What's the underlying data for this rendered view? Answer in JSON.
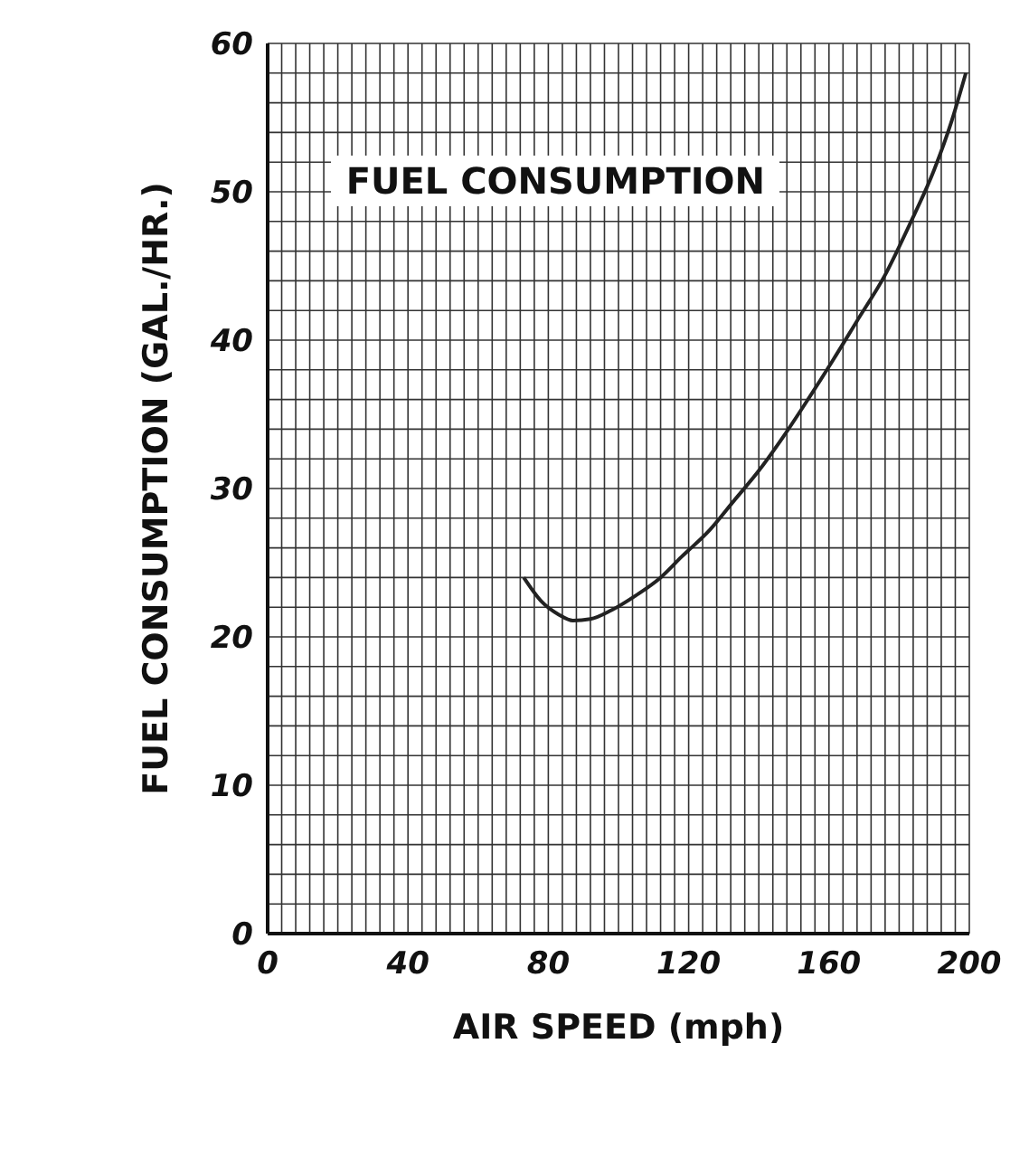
{
  "chart_data": {
    "type": "line",
    "title": "FUEL CONSUMPTION",
    "xlabel": "AIR SPEED (mph)",
    "ylabel": "FUEL CONSUMPTION  (GAL./HR.)",
    "series": [
      {
        "color": "#222222",
        "x": [
          73,
          78,
          83,
          87,
          92,
          98,
          105,
          112,
          118,
          126,
          133,
          140,
          147,
          154,
          161,
          168,
          176,
          183,
          190,
          195,
          199
        ],
        "values": [
          24.0,
          22.4,
          21.5,
          21.1,
          21.2,
          21.8,
          22.8,
          24.0,
          25.4,
          27.2,
          29.2,
          31.2,
          33.5,
          36.0,
          38.6,
          41.3,
          44.4,
          47.8,
          51.5,
          54.8,
          58.0
        ]
      }
    ],
    "xlim": [
      0,
      200
    ],
    "ylim": [
      0,
      60
    ],
    "xticks": [
      0,
      {
        "value": 4,
        "label": null
      },
      {
        "value": 8,
        "label": null
      },
      {
        "value": 12,
        "label": null
      },
      {
        "value": 16,
        "label": null
      },
      {
        "value": 20,
        "label": null
      },
      {
        "value": 24,
        "label": null
      },
      {
        "value": 28,
        "label": null
      },
      {
        "value": 32,
        "label": null
      },
      {
        "value": 36,
        "label": null
      },
      40,
      {
        "value": 44,
        "label": null
      },
      {
        "value": 48,
        "label": null
      },
      {
        "value": 52,
        "label": null
      },
      {
        "value": 56,
        "label": null
      },
      {
        "value": 60,
        "label": null
      },
      {
        "value": 64,
        "label": null
      },
      {
        "value": 68,
        "label": null
      },
      {
        "value": 72,
        "label": null
      },
      {
        "value": 76,
        "label": null
      },
      80,
      {
        "value": 84,
        "label": null
      },
      {
        "value": 88,
        "label": null
      },
      {
        "value": 92,
        "label": null
      },
      {
        "value": 96,
        "label": null
      },
      {
        "value": 100,
        "label": null
      },
      {
        "value": 104,
        "label": null
      },
      {
        "value": 108,
        "label": null
      },
      {
        "value": 112,
        "label": null
      },
      {
        "value": 116,
        "label": null
      },
      120,
      {
        "value": 124,
        "label": null
      },
      {
        "value": 128,
        "label": null
      },
      {
        "value": 132,
        "label": null
      },
      {
        "value": 136,
        "label": null
      },
      {
        "value": 140,
        "label": null
      },
      {
        "value": 144,
        "label": null
      },
      {
        "value": 148,
        "label": null
      },
      {
        "value": 152,
        "label": null
      },
      {
        "value": 156,
        "label": null
      },
      160,
      {
        "value": 164,
        "label": null
      },
      {
        "value": 168,
        "label": null
      },
      {
        "value": 172,
        "label": null
      },
      {
        "value": 176,
        "label": null
      },
      {
        "value": 180,
        "label": null
      },
      {
        "value": 184,
        "label": null
      },
      {
        "value": 188,
        "label": null
      },
      {
        "value": 192,
        "label": null
      },
      {
        "value": 196,
        "label": null
      },
      200
    ],
    "yticks": [
      0,
      {
        "value": 2,
        "label": null
      },
      {
        "value": 4,
        "label": null
      },
      {
        "value": 6,
        "label": null
      },
      {
        "value": 8,
        "label": null
      },
      10,
      {
        "value": 12,
        "label": null
      },
      {
        "value": 14,
        "label": null
      },
      {
        "value": 16,
        "label": null
      },
      {
        "value": 18,
        "label": null
      },
      20,
      {
        "value": 22,
        "label": null
      },
      {
        "value": 24,
        "label": null
      },
      {
        "value": 26,
        "label": null
      },
      {
        "value": 28,
        "label": null
      },
      30,
      {
        "value": 32,
        "label": null
      },
      {
        "value": 34,
        "label": null
      },
      {
        "value": 36,
        "label": null
      },
      {
        "value": 38,
        "label": null
      },
      40,
      {
        "value": 42,
        "label": null
      },
      {
        "value": 44,
        "label": null
      },
      {
        "value": 46,
        "label": null
      },
      {
        "value": 48,
        "label": null
      },
      50,
      {
        "value": 52,
        "label": null
      },
      {
        "value": 54,
        "label": null
      },
      {
        "value": 56,
        "label": null
      },
      {
        "value": 58,
        "label": null
      },
      60
    ],
    "grid": true,
    "marker": "none",
    "line_style": "solid"
  }
}
